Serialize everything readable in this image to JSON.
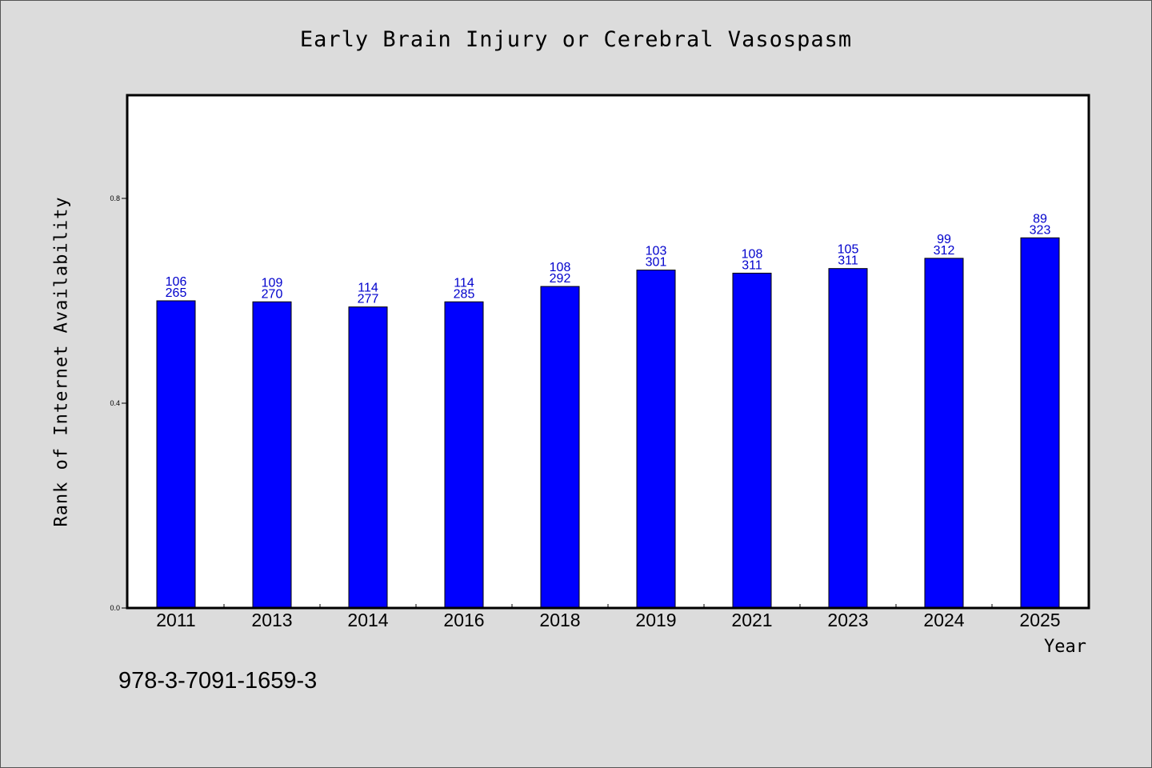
{
  "chart_data": {
    "type": "bar",
    "title": "Early Brain Injury or Cerebral Vasospasm",
    "xlabel": "Year",
    "ylabel": "Rank of Internet Availability",
    "categories": [
      "2011",
      "2013",
      "2014",
      "2016",
      "2018",
      "2019",
      "2021",
      "2023",
      "2024",
      "2025"
    ],
    "values": [
      0.6,
      0.598,
      0.588,
      0.598,
      0.628,
      0.66,
      0.654,
      0.663,
      0.683,
      0.723
    ],
    "annotations_top": [
      "106",
      "109",
      "114",
      "114",
      "108",
      "103",
      "108",
      "105",
      "99",
      "89"
    ],
    "annotations_bottom": [
      "265",
      "270",
      "277",
      "285",
      "292",
      "301",
      "311",
      "311",
      "312",
      "323"
    ],
    "ylim": [
      0.0,
      1.0
    ],
    "yticks": [
      0.0,
      0.4,
      0.8
    ],
    "ytick_labels": [
      "0.0",
      "0.4",
      "0.8"
    ],
    "grid": false,
    "legend": "none",
    "bar_color": "#0000ff",
    "label_color": "#0000cc",
    "background_color": "#dcdcdc",
    "plot_background_color": "#ffffff"
  },
  "footnote": "978-3-7091-1659-3"
}
